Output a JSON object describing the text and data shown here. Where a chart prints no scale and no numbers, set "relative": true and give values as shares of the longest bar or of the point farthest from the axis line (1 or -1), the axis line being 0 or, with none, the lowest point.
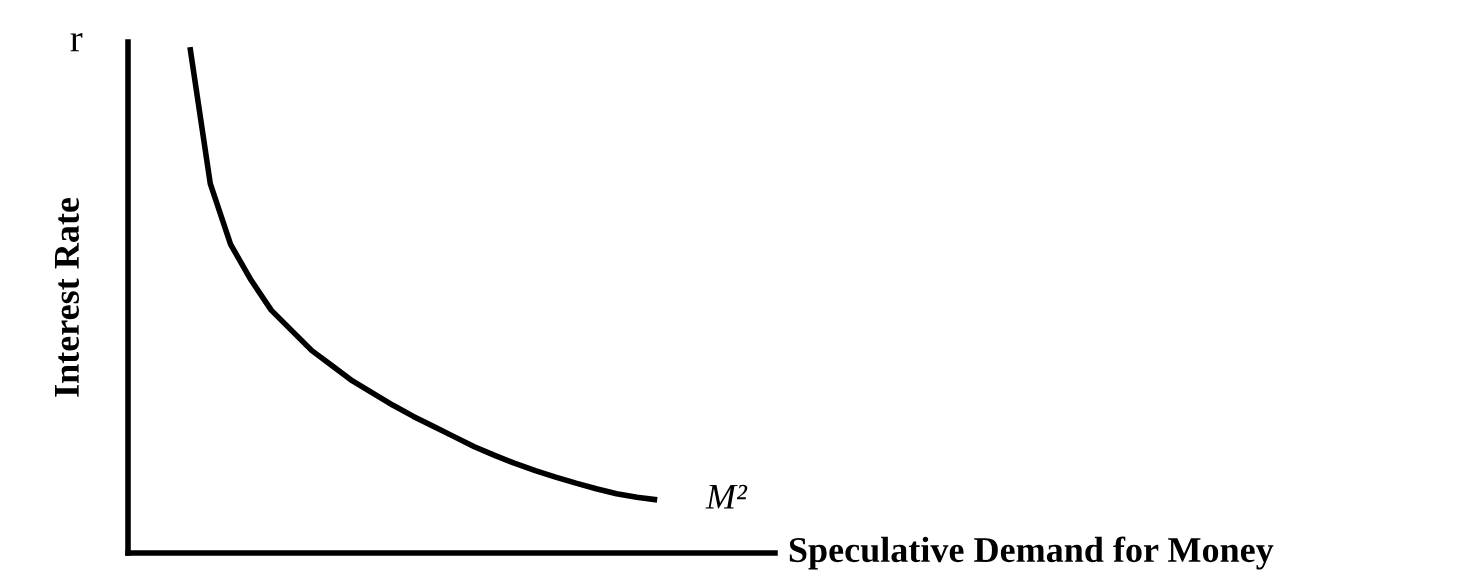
{
  "chart_data": {
    "type": "line",
    "relative": true,
    "xlabel": "Speculative Demand for Money",
    "ylabel": "Interest Rate",
    "annotations": [
      "r"
    ],
    "categories": [
      null,
      null,
      null,
      null,
      null,
      null,
      null,
      null,
      null,
      null,
      null,
      null,
      null,
      null,
      null,
      null,
      null,
      null,
      null,
      null,
      null,
      null,
      null,
      null
    ],
    "series": [
      {
        "name": "M²",
        "color": "#000000",
        "values": [
          1.0,
          0.73,
          0.61,
          0.54,
          0.48,
          0.44,
          0.4,
          0.37,
          0.34,
          0.316,
          0.292,
          0.27,
          0.25,
          0.23,
          0.21,
          0.193,
          0.177,
          0.163,
          0.15,
          0.138,
          0.127,
          0.117,
          0.11,
          0.105
        ]
      }
    ],
    "legend": false,
    "marker": "none",
    "line_style": "solid"
  }
}
